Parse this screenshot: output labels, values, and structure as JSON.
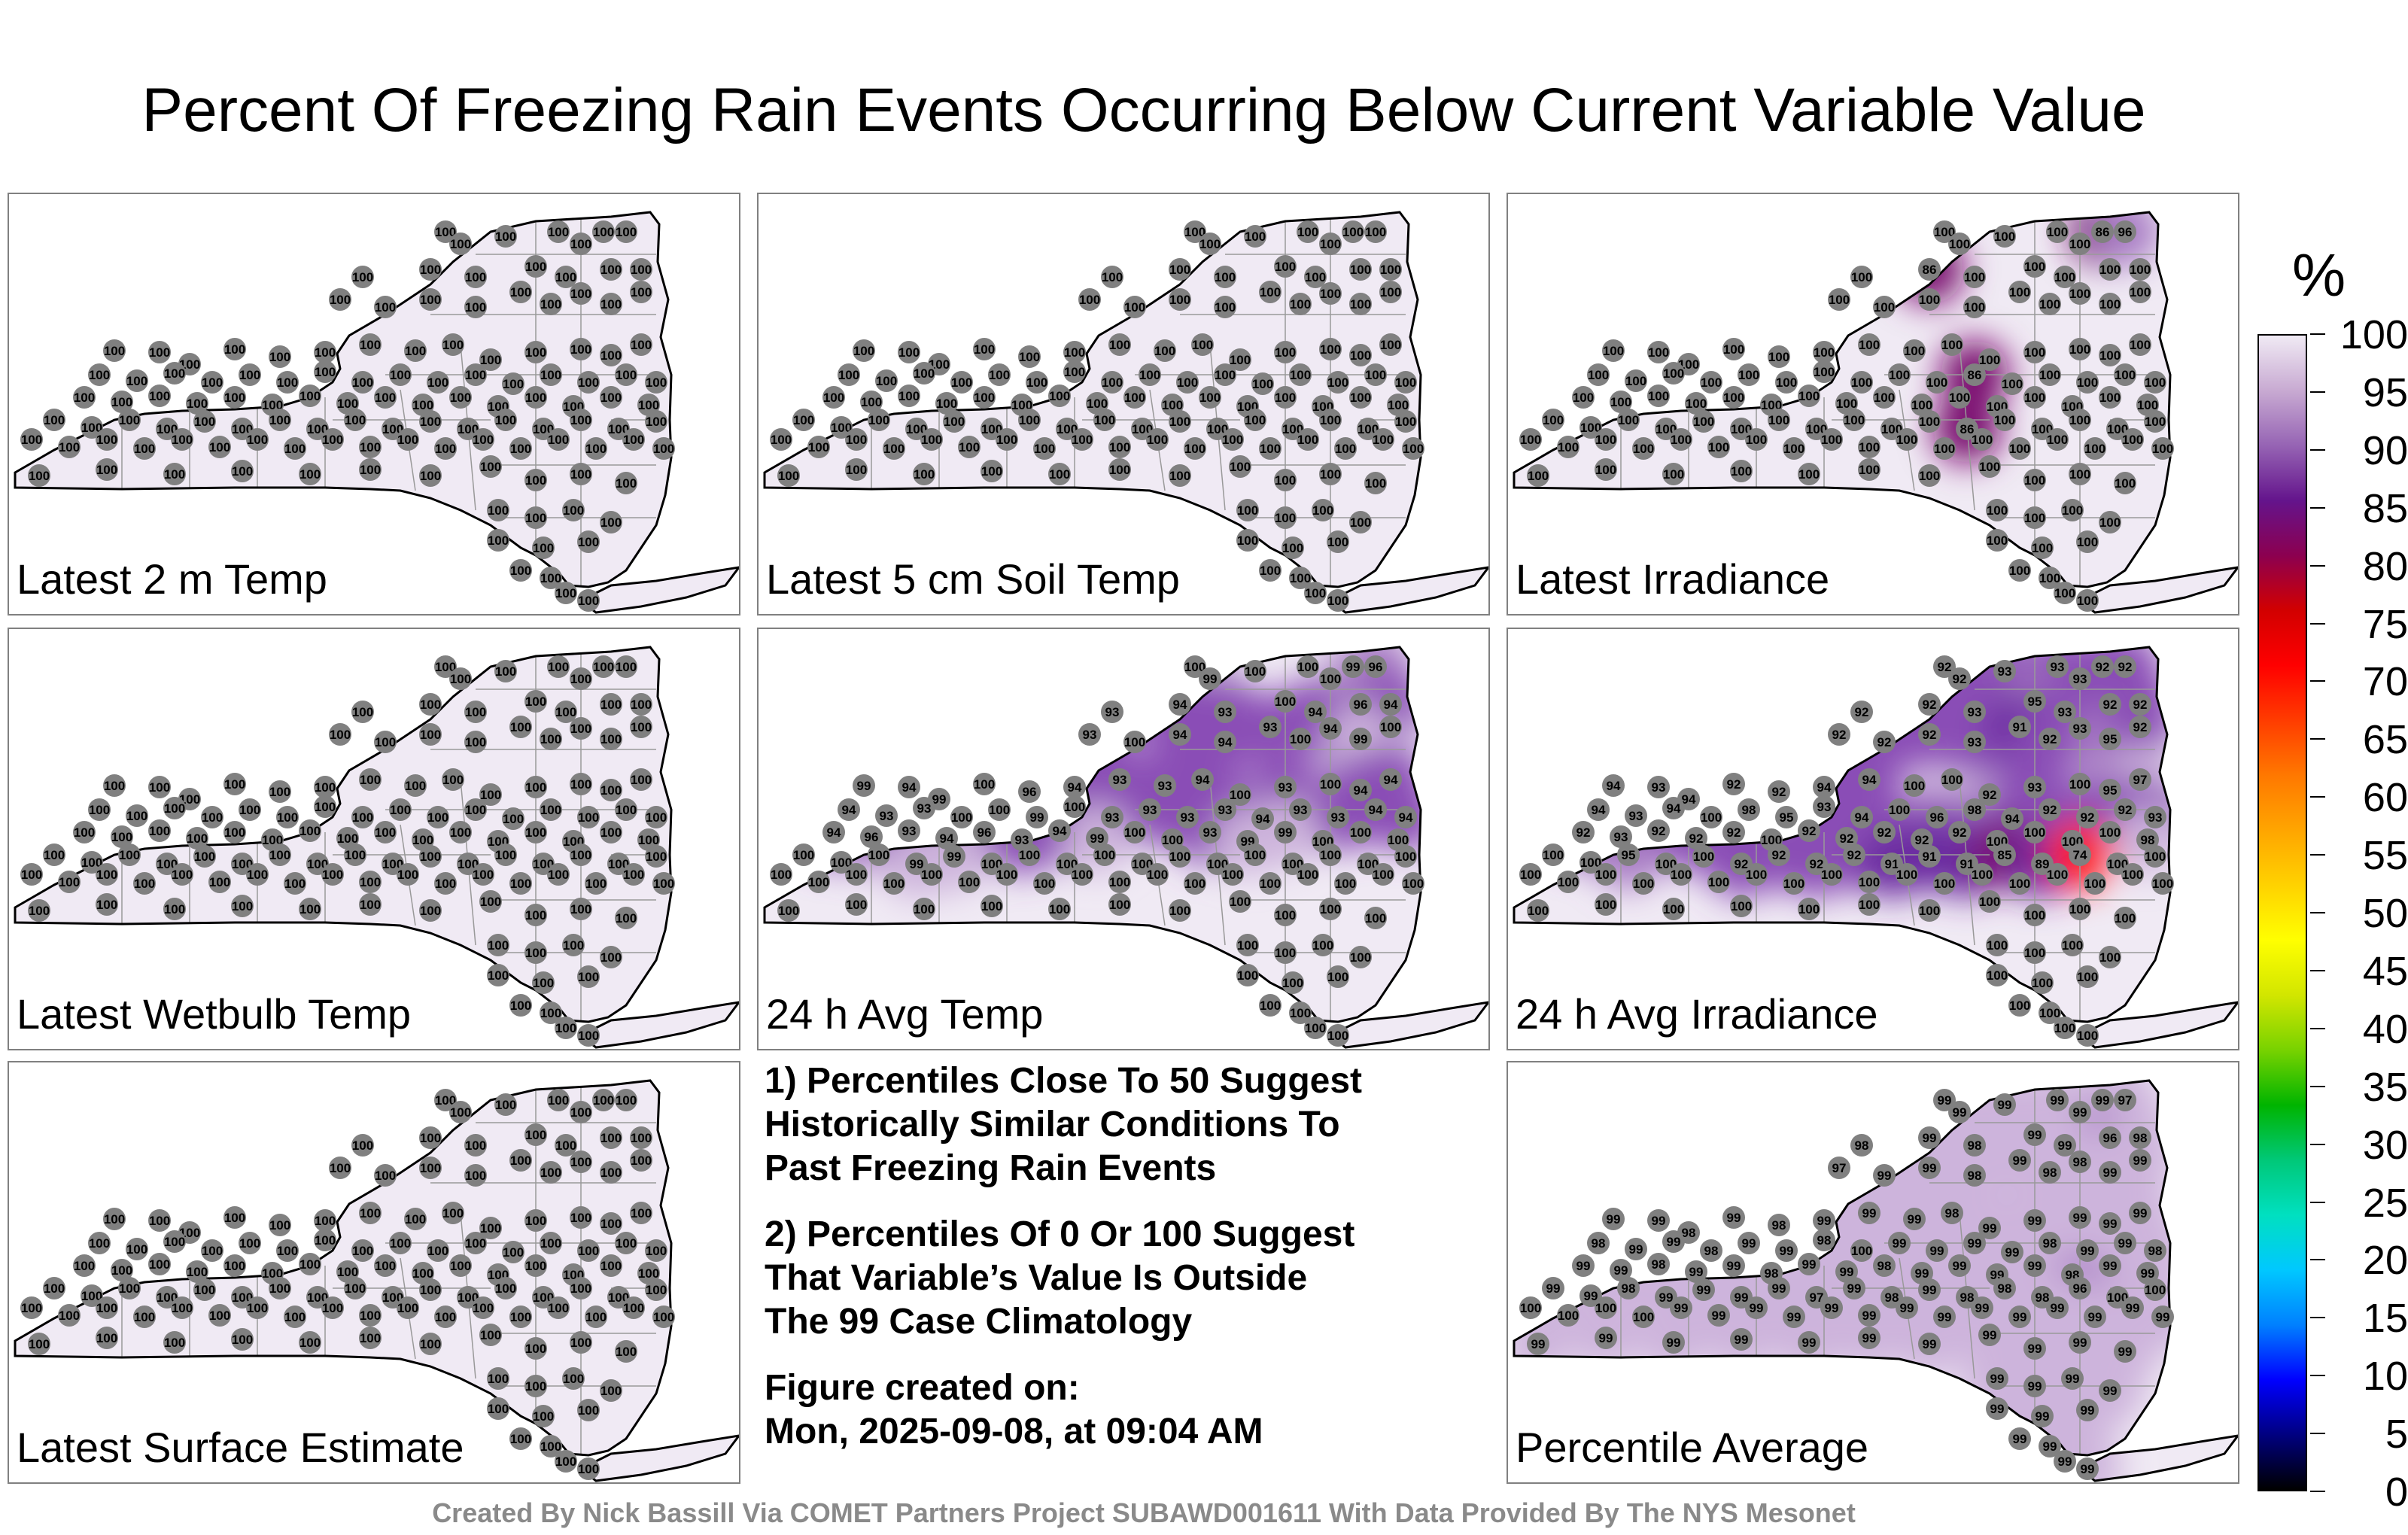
{
  "title": "Percent Of Freezing Rain Events Occurring Below Current Variable Value",
  "panels": [
    {
      "label": "Latest 2 m Temp",
      "values": [
        100,
        100,
        100,
        100,
        100,
        100,
        100,
        100,
        100,
        100,
        100,
        100,
        100,
        100,
        100,
        100,
        100,
        100,
        100,
        100,
        100,
        100,
        100,
        100,
        100,
        100,
        100,
        100,
        100,
        100,
        100,
        100,
        100,
        100,
        100,
        100,
        100,
        100,
        100,
        100,
        100,
        100,
        100,
        100,
        100,
        100,
        100,
        100,
        100,
        100,
        100,
        100,
        100,
        100,
        100,
        100,
        100,
        100,
        100,
        100,
        100,
        100,
        100,
        100,
        100,
        100,
        100,
        100,
        100,
        100,
        100,
        100,
        100,
        100,
        100,
        100,
        100,
        100,
        100,
        100,
        100,
        100,
        100,
        100,
        100,
        100,
        100,
        100,
        100,
        100,
        100,
        100,
        100,
        100,
        100,
        100,
        100,
        100,
        100,
        100,
        100,
        100,
        100,
        100,
        100,
        100,
        100,
        100,
        100,
        100,
        100,
        100,
        100,
        100,
        100,
        100,
        100,
        100,
        100,
        100,
        100,
        100,
        100,
        100,
        100,
        100
      ]
    },
    {
      "label": "Latest 5 cm Soil Temp",
      "values": [
        100,
        100,
        100,
        100,
        100,
        100,
        100,
        100,
        100,
        100,
        100,
        100,
        100,
        100,
        100,
        100,
        100,
        100,
        100,
        100,
        100,
        100,
        100,
        100,
        100,
        100,
        100,
        100,
        100,
        100,
        100,
        100,
        100,
        100,
        100,
        100,
        100,
        100,
        100,
        100,
        100,
        100,
        100,
        100,
        100,
        100,
        100,
        100,
        100,
        100,
        100,
        100,
        100,
        100,
        100,
        100,
        100,
        100,
        100,
        100,
        100,
        100,
        100,
        100,
        100,
        100,
        100,
        100,
        100,
        100,
        100,
        100,
        100,
        100,
        100,
        100,
        100,
        100,
        100,
        100,
        100,
        100,
        100,
        100,
        100,
        100,
        100,
        100,
        100,
        100,
        100,
        100,
        100,
        100,
        100,
        100,
        100,
        100,
        100,
        100,
        100,
        100,
        100,
        100,
        100,
        100,
        100,
        100,
        100,
        100,
        100,
        100,
        100,
        100,
        100,
        100,
        100,
        100,
        100,
        100,
        100,
        100,
        100,
        100,
        100,
        100
      ]
    },
    {
      "label": "Latest Irradiance",
      "values": [
        100,
        100,
        100,
        100,
        100,
        86,
        96,
        100,
        86,
        100,
        100,
        100,
        100,
        100,
        100,
        100,
        100,
        100,
        100,
        100,
        100,
        100,
        100,
        100,
        100,
        100,
        100,
        100,
        100,
        100,
        100,
        100,
        100,
        100,
        100,
        100,
        100,
        100,
        100,
        100,
        100,
        100,
        100,
        100,
        100,
        100,
        100,
        86,
        100,
        100,
        100,
        100,
        100,
        100,
        100,
        100,
        100,
        100,
        100,
        100,
        100,
        100,
        100,
        100,
        100,
        100,
        100,
        100,
        100,
        100,
        100,
        100,
        100,
        100,
        100,
        100,
        100,
        100,
        100,
        100,
        86,
        100,
        100,
        100,
        100,
        100,
        100,
        100,
        100,
        100,
        100,
        100,
        100,
        100,
        100,
        100,
        100,
        100,
        100,
        100,
        100,
        100,
        100,
        100,
        100,
        100,
        100,
        100,
        100,
        100,
        100,
        100,
        100,
        100,
        100,
        100,
        100,
        100,
        100,
        100,
        100,
        100,
        100,
        100,
        100,
        100
      ]
    },
    {
      "label": "Latest Wetbulb Temp",
      "values": [
        100,
        100,
        100,
        100,
        100,
        100,
        100,
        100,
        100,
        100,
        100,
        100,
        100,
        100,
        100,
        100,
        100,
        100,
        100,
        100,
        100,
        100,
        100,
        100,
        100,
        100,
        100,
        100,
        100,
        100,
        100,
        100,
        100,
        100,
        100,
        100,
        100,
        100,
        100,
        100,
        100,
        100,
        100,
        100,
        100,
        100,
        100,
        100,
        100,
        100,
        100,
        100,
        100,
        100,
        100,
        100,
        100,
        100,
        100,
        100,
        100,
        100,
        100,
        100,
        100,
        100,
        100,
        100,
        100,
        100,
        100,
        100,
        100,
        100,
        100,
        100,
        100,
        100,
        100,
        100,
        100,
        100,
        100,
        100,
        100,
        100,
        100,
        100,
        100,
        100,
        100,
        100,
        100,
        100,
        100,
        100,
        100,
        100,
        100,
        100,
        100,
        100,
        100,
        100,
        100,
        100,
        100,
        100,
        100,
        100,
        100,
        100,
        100,
        100,
        100,
        100,
        100,
        100,
        100,
        100,
        100,
        100,
        100,
        100,
        100,
        100
      ]
    },
    {
      "label": "24 h Avg Temp",
      "values": [
        100,
        99,
        100,
        100,
        100,
        99,
        96,
        93,
        94,
        93,
        100,
        94,
        96,
        94,
        93,
        100,
        94,
        94,
        93,
        100,
        94,
        99,
        100,
        99,
        94,
        99,
        100,
        96,
        94,
        93,
        93,
        94,
        100,
        93,
        100,
        94,
        94,
        94,
        93,
        93,
        100,
        100,
        99,
        100,
        93,
        93,
        93,
        93,
        94,
        93,
        93,
        94,
        94,
        94,
        96,
        93,
        94,
        96,
        93,
        94,
        99,
        100,
        100,
        93,
        99,
        99,
        100,
        100,
        100,
        100,
        100,
        100,
        99,
        99,
        100,
        100,
        100,
        100,
        100,
        100,
        100,
        100,
        100,
        100,
        100,
        100,
        100,
        100,
        100,
        100,
        100,
        100,
        100,
        100,
        100,
        100,
        100,
        100,
        100,
        100,
        100,
        100,
        100,
        100,
        100,
        100,
        100,
        100,
        100,
        100,
        100,
        100,
        100,
        100,
        100,
        100,
        100,
        100,
        100,
        100,
        100,
        100,
        100,
        100,
        100,
        100
      ]
    },
    {
      "label": "24 h Avg Irradiance",
      "values": [
        92,
        92,
        93,
        93,
        93,
        92,
        92,
        92,
        92,
        93,
        95,
        93,
        92,
        92,
        92,
        92,
        92,
        93,
        91,
        92,
        93,
        95,
        92,
        94,
        93,
        94,
        92,
        92,
        94,
        94,
        100,
        100,
        92,
        93,
        100,
        95,
        97,
        94,
        93,
        94,
        100,
        98,
        95,
        93,
        94,
        100,
        96,
        98,
        94,
        92,
        92,
        92,
        93,
        92,
        93,
        92,
        92,
        92,
        100,
        92,
        92,
        92,
        92,
        92,
        100,
        100,
        100,
        100,
        98,
        100,
        100,
        95,
        100,
        100,
        92,
        92,
        92,
        92,
        91,
        91,
        91,
        85,
        89,
        74,
        100,
        100,
        100,
        100,
        100,
        100,
        100,
        100,
        100,
        100,
        100,
        100,
        100,
        100,
        100,
        100,
        100,
        100,
        100,
        100,
        100,
        100,
        100,
        100,
        100,
        100,
        100,
        100,
        100,
        100,
        100,
        100,
        100,
        100,
        100,
        100,
        100,
        100,
        100,
        100,
        100,
        100
      ]
    },
    {
      "label": "Latest Surface Estimate",
      "values": [
        100,
        100,
        100,
        100,
        100,
        100,
        100,
        100,
        100,
        100,
        100,
        100,
        100,
        100,
        100,
        100,
        100,
        100,
        100,
        100,
        100,
        100,
        100,
        100,
        100,
        100,
        100,
        100,
        100,
        100,
        100,
        100,
        100,
        100,
        100,
        100,
        100,
        100,
        100,
        100,
        100,
        100,
        100,
        100,
        100,
        100,
        100,
        100,
        100,
        100,
        100,
        100,
        100,
        100,
        100,
        100,
        100,
        100,
        100,
        100,
        100,
        100,
        100,
        100,
        100,
        100,
        100,
        100,
        100,
        100,
        100,
        100,
        100,
        100,
        100,
        100,
        100,
        100,
        100,
        100,
        100,
        100,
        100,
        100,
        100,
        100,
        100,
        100,
        100,
        100,
        100,
        100,
        100,
        100,
        100,
        100,
        100,
        100,
        100,
        100,
        100,
        100,
        100,
        100,
        100,
        100,
        100,
        100,
        100,
        100,
        100,
        100,
        100,
        100,
        100,
        100,
        100,
        100,
        100,
        100,
        100,
        100,
        100,
        100,
        100,
        100
      ]
    },
    {
      "label": "Percentile Average",
      "values": [
        99,
        99,
        99,
        99,
        99,
        99,
        97,
        98,
        99,
        98,
        99,
        99,
        96,
        98,
        97,
        99,
        99,
        98,
        99,
        98,
        98,
        99,
        99,
        99,
        99,
        98,
        99,
        98,
        99,
        99,
        99,
        98,
        99,
        99,
        99,
        99,
        99,
        98,
        99,
        99,
        98,
        99,
        99,
        98,
        100,
        99,
        99,
        99,
        99,
        98,
        99,
        99,
        98,
        99,
        99,
        98,
        99,
        99,
        98,
        99,
        99,
        98,
        99,
        99,
        99,
        99,
        98,
        99,
        99,
        99,
        99,
        98,
        99,
        99,
        99,
        99,
        97,
        99,
        98,
        99,
        98,
        98,
        98,
        96,
        100,
        100,
        100,
        100,
        100,
        100,
        99,
        99,
        99,
        99,
        99,
        99,
        99,
        99,
        99,
        99,
        99,
        99,
        99,
        99,
        99,
        99,
        99,
        99,
        99,
        99,
        99,
        99,
        99,
        99,
        99,
        99,
        99,
        99,
        99,
        99,
        99,
        99,
        99,
        99,
        99,
        99
      ]
    }
  ],
  "notes": [
    "1) Percentiles Close To 50 Suggest\nHistorically Similar Conditions To\nPast Freezing Rain Events",
    "2) Percentiles Of 0 Or 100 Suggest\nThat Variable’s Value Is Outside\nThe 99 Case Climatology",
    "Figure created on:\nMon, 2025-09-08, at 09:04 AM"
  ],
  "colorbar": {
    "unit": "%",
    "ticks": [
      "0",
      "5",
      "10",
      "15",
      "20",
      "25",
      "30",
      "35",
      "40",
      "45",
      "50",
      "55",
      "60",
      "65",
      "70",
      "75",
      "80",
      "85",
      "90",
      "95",
      "100"
    ],
    "colors": [
      "#000000",
      "#000080",
      "#0000ff",
      "#0080ff",
      "#00c8ff",
      "#00e0c0",
      "#00c878",
      "#00b400",
      "#78d200",
      "#d2e600",
      "#ffff00",
      "#ffd200",
      "#ffa500",
      "#ff7800",
      "#ff3c00",
      "#ff0000",
      "#d20000",
      "#8c0050",
      "#64148c",
      "#9664b4",
      "#c8aad2",
      "#f0eaf4"
    ]
  },
  "footer": "Created By Nick Bassill Via COMET Partners Project SUBAWD001611 With Data Provided By The NYS Mesonet"
}
